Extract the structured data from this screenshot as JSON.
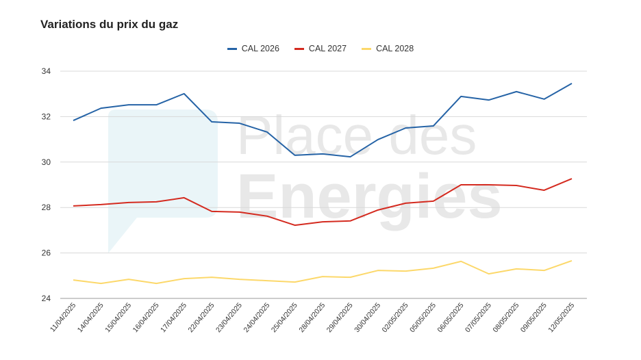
{
  "watermark": {
    "line1": "Place des",
    "line2": "Energies"
  },
  "chart_data": {
    "type": "line",
    "title": "Variations du prix du gaz",
    "xlabel": "",
    "ylabel": "",
    "ylim": [
      24,
      34
    ],
    "yticks": [
      24,
      26,
      28,
      30,
      32,
      34
    ],
    "grid": true,
    "legend_position": "top-center",
    "categories": [
      "11/04/2025",
      "14/04/2025",
      "15/04/2025",
      "16/04/2025",
      "17/04/2025",
      "22/04/2025",
      "23/04/2025",
      "24/04/2025",
      "25/04/2025",
      "28/04/2025",
      "29/04/2025",
      "30/04/2025",
      "02/05/2025",
      "05/05/2025",
      "06/05/2025",
      "07/05/2025",
      "08/05/2025",
      "09/05/2025",
      "12/05/2025"
    ],
    "series": [
      {
        "name": "CAL 2026",
        "color": "#2563a6",
        "values": [
          31.83,
          32.37,
          32.52,
          32.52,
          33.01,
          31.77,
          31.71,
          31.32,
          30.3,
          30.36,
          30.23,
          30.99,
          31.5,
          31.59,
          32.89,
          32.73,
          33.1,
          32.77,
          33.46
        ]
      },
      {
        "name": "CAL 2027",
        "color": "#d42a1f",
        "values": [
          28.07,
          28.13,
          28.22,
          28.25,
          28.43,
          27.83,
          27.8,
          27.62,
          27.22,
          27.37,
          27.41,
          27.89,
          28.19,
          28.28,
          29.0,
          29.0,
          28.97,
          28.76,
          29.27
        ]
      },
      {
        "name": "CAL 2028",
        "color": "#fcd86a",
        "values": [
          24.81,
          24.66,
          24.84,
          24.66,
          24.87,
          24.93,
          24.84,
          24.78,
          24.72,
          24.96,
          24.93,
          25.23,
          25.2,
          25.33,
          25.63,
          25.08,
          25.3,
          25.23,
          25.66
        ]
      }
    ]
  }
}
